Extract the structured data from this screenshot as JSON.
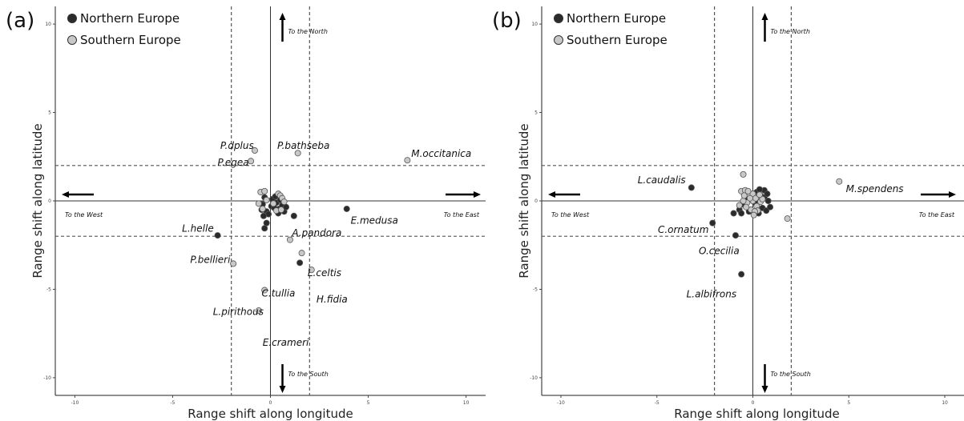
{
  "chart_data": [
    {
      "type": "scatter",
      "panel_label": "(a)",
      "xlabel": "Range shift along longitude",
      "ylabel": "Range shift along latitude",
      "xlim": [
        -11,
        11
      ],
      "ylim": [
        -11,
        11
      ],
      "x_ticks": [
        -10,
        -5,
        0,
        5,
        10
      ],
      "y_ticks": [
        -10,
        -5,
        0,
        5,
        10
      ],
      "x_ticks_labels": [
        "-10",
        "-5",
        "0",
        "5",
        "10"
      ],
      "y_ticks_labels": [
        "-10",
        "-5",
        "0",
        "5",
        "10"
      ],
      "dashed_lines": {
        "x": [
          -2,
          2
        ],
        "y": [
          -2,
          2
        ]
      },
      "grid": false,
      "legend_position": "top-left",
      "series": [
        {
          "name": "Northern Europe",
          "color": "#2b2b2b",
          "points": [
            [
              -2.7,
              -1.95
            ],
            [
              1.5,
              -3.5
            ],
            [
              3.9,
              -0.45
            ],
            [
              1.2,
              -0.85
            ],
            [
              -0.2,
              -1.25
            ],
            [
              -0.3,
              -1.55
            ],
            [
              -0.45,
              -0.5
            ],
            [
              -0.4,
              -0.2
            ],
            [
              -0.3,
              0.2
            ],
            [
              -0.2,
              -0.6
            ],
            [
              0.05,
              -0.3
            ],
            [
              0.1,
              0.1
            ],
            [
              0.2,
              -0.4
            ],
            [
              0.3,
              -0.1
            ],
            [
              0.45,
              -0.45
            ],
            [
              0.6,
              -0.25
            ],
            [
              0.7,
              -0.6
            ],
            [
              0.5,
              0.05
            ],
            [
              -0.1,
              -0.75
            ],
            [
              0.25,
              0.25
            ],
            [
              0.8,
              -0.35
            ],
            [
              -0.35,
              -0.85
            ],
            [
              0.4,
              -0.7
            ]
          ]
        },
        {
          "name": "Southern Europe",
          "color": "#c8c8c8",
          "points": [
            [
              -0.8,
              2.85
            ],
            [
              -1.0,
              2.25
            ],
            [
              1.4,
              2.7
            ],
            [
              7.0,
              2.3
            ],
            [
              -1.9,
              -3.55
            ],
            [
              -0.3,
              -5.05
            ],
            [
              -0.6,
              -6.2
            ],
            [
              1.0,
              -2.2
            ],
            [
              1.6,
              -2.95
            ],
            [
              2.1,
              -3.9
            ],
            [
              -0.5,
              0.5
            ],
            [
              -0.3,
              0.55
            ],
            [
              0.4,
              0.4
            ],
            [
              0.5,
              0.3
            ],
            [
              0.6,
              0.15
            ],
            [
              -0.6,
              -0.15
            ],
            [
              -0.4,
              -0.45
            ],
            [
              0.3,
              -0.55
            ],
            [
              0.15,
              -0.15
            ],
            [
              -0.2,
              0.05
            ],
            [
              0.7,
              -0.05
            ],
            [
              0.55,
              -0.5
            ]
          ]
        }
      ],
      "annotations": [
        {
          "text": "P.dplus",
          "x": -0.85,
          "y": 2.95,
          "anchor": "end"
        },
        {
          "text": "P.bathseba",
          "x": 0.35,
          "y": 2.95,
          "anchor": "start"
        },
        {
          "text": "P.egea",
          "x": -1.1,
          "y": 2.0,
          "anchor": "end"
        },
        {
          "text": "M.occitanica",
          "x": 7.2,
          "y": 2.5,
          "anchor": "start"
        },
        {
          "text": "E.medusa",
          "x": 4.1,
          "y": -1.3,
          "anchor": "start"
        },
        {
          "text": "L.helle",
          "x": -2.9,
          "y": -1.75,
          "anchor": "end"
        },
        {
          "text": "A.pandora",
          "x": 1.1,
          "y": -2.0,
          "anchor": "start"
        },
        {
          "text": "P.bellieri",
          "x": -2.05,
          "y": -3.5,
          "anchor": "end"
        },
        {
          "text": "L.celtis",
          "x": 1.9,
          "y": -4.25,
          "anchor": "start"
        },
        {
          "text": "C.tullia",
          "x": -0.45,
          "y": -5.4,
          "anchor": "start"
        },
        {
          "text": "H.fidia",
          "x": 2.35,
          "y": -5.75,
          "anchor": "start"
        },
        {
          "text": "L.pirithous",
          "x": -0.35,
          "y": -6.45,
          "anchor": "end"
        },
        {
          "text": "E.crameri",
          "x": -0.4,
          "y": -8.2,
          "anchor": "start"
        }
      ],
      "direction_labels": {
        "north": "To the North",
        "south": "To the South",
        "west": "To the West",
        "east": "To the East"
      }
    },
    {
      "type": "scatter",
      "panel_label": "(b)",
      "xlabel": "Range shift along longitude",
      "ylabel": "Range shift along latitude",
      "xlim": [
        -11,
        11
      ],
      "ylim": [
        -11,
        11
      ],
      "x_ticks": [
        -10,
        -5,
        0,
        5,
        10
      ],
      "y_ticks": [
        -10,
        -5,
        0,
        5,
        10
      ],
      "x_ticks_labels": [
        "-10",
        "-5",
        "0",
        "5",
        "10"
      ],
      "y_ticks_labels": [
        "-10",
        "-5",
        "0",
        "5",
        "10"
      ],
      "dashed_lines": {
        "x": [
          -2,
          2
        ],
        "y": [
          -2,
          2
        ]
      },
      "grid": false,
      "legend_position": "top-left",
      "series": [
        {
          "name": "Northern Europe",
          "color": "#2b2b2b",
          "points": [
            [
              -3.2,
              0.75
            ],
            [
              -2.1,
              -1.25
            ],
            [
              -0.9,
              -1.95
            ],
            [
              -0.6,
              -4.15
            ],
            [
              -1.0,
              -0.7
            ],
            [
              -0.7,
              -0.5
            ],
            [
              -0.5,
              -0.2
            ],
            [
              -0.3,
              0.1
            ],
            [
              0.2,
              0.5
            ],
            [
              0.4,
              0.3
            ],
            [
              0.6,
              0.6
            ],
            [
              0.8,
              0.0
            ],
            [
              0.5,
              -0.4
            ],
            [
              0.7,
              -0.55
            ],
            [
              -0.2,
              -0.6
            ],
            [
              0.3,
              -0.7
            ],
            [
              0.9,
              -0.35
            ],
            [
              0.1,
              -0.1
            ],
            [
              -0.6,
              -0.7
            ],
            [
              0.6,
              0.2
            ],
            [
              0.35,
              0.65
            ],
            [
              -0.4,
              0.35
            ],
            [
              0.75,
              0.4
            ]
          ]
        },
        {
          "name": "Southern Europe",
          "color": "#c8c8c8",
          "points": [
            [
              4.5,
              1.1
            ],
            [
              1.8,
              -1.0
            ],
            [
              -0.5,
              1.5
            ],
            [
              -0.6,
              0.55
            ],
            [
              -0.4,
              0.6
            ],
            [
              -0.2,
              0.3
            ],
            [
              0.0,
              0.4
            ],
            [
              -0.3,
              -0.1
            ],
            [
              0.2,
              -0.3
            ],
            [
              -0.1,
              -0.5
            ],
            [
              0.4,
              -0.05
            ],
            [
              0.0,
              0.0
            ],
            [
              -0.5,
              0.0
            ],
            [
              0.15,
              0.15
            ],
            [
              -0.35,
              -0.35
            ],
            [
              0.25,
              -0.55
            ],
            [
              -0.15,
              0.15
            ],
            [
              0.5,
              0.1
            ],
            [
              -0.7,
              -0.25
            ],
            [
              0.1,
              -0.6
            ],
            [
              -0.25,
              0.55
            ],
            [
              0.35,
              0.35
            ],
            [
              0.05,
              -0.8
            ],
            [
              -0.45,
              0.3
            ]
          ]
        }
      ],
      "annotations": [
        {
          "text": "L.caudalis",
          "x": -3.5,
          "y": 1.0,
          "anchor": "end"
        },
        {
          "text": "M.spendens",
          "x": 4.85,
          "y": 0.5,
          "anchor": "start"
        },
        {
          "text": "C.ornatum",
          "x": -2.3,
          "y": -1.8,
          "anchor": "end"
        },
        {
          "text": "O.cecilia",
          "x": -0.7,
          "y": -3.0,
          "anchor": "end"
        },
        {
          "text": "L.albifrons",
          "x": -0.85,
          "y": -5.45,
          "anchor": "end"
        }
      ],
      "direction_labels": {
        "north": "To the North",
        "south": "To the South",
        "west": "To the West",
        "east": "To the East"
      }
    }
  ]
}
